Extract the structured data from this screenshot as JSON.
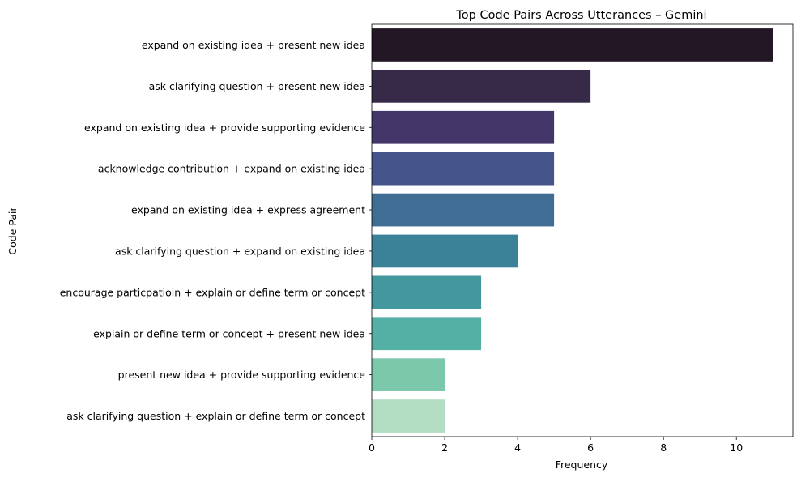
{
  "chart_data": {
    "type": "bar",
    "orientation": "horizontal",
    "title": "Top Code Pairs Across Utterances – Gemini",
    "xlabel": "Frequency",
    "ylabel": "Code Pair",
    "xlim": [
      0,
      11.55
    ],
    "xticks": [
      "0",
      "2",
      "4",
      "6",
      "8",
      "10"
    ],
    "grid": false,
    "palette": "mako",
    "categories": [
      "expand on existing idea + present new idea",
      "ask clarifying question + present new idea",
      "expand on existing idea + provide supporting evidence",
      "acknowledge contribution + expand on existing idea",
      "expand on existing idea + express agreement",
      "ask clarifying question + expand on existing idea",
      "encourage particpatioin + explain or define term or concept",
      "explain or define term or concept + present new idea",
      "present new idea + provide supporting evidence",
      "ask clarifying question + explain or define term or concept"
    ],
    "values": [
      11,
      6,
      5,
      5,
      5,
      4,
      3,
      3,
      2,
      2
    ],
    "colors": [
      "#231725",
      "#372a48",
      "#433669",
      "#45548a",
      "#3f6d93",
      "#3b8299",
      "#43989e",
      "#54b0a4",
      "#7bc8aa",
      "#b3ddc3"
    ]
  }
}
